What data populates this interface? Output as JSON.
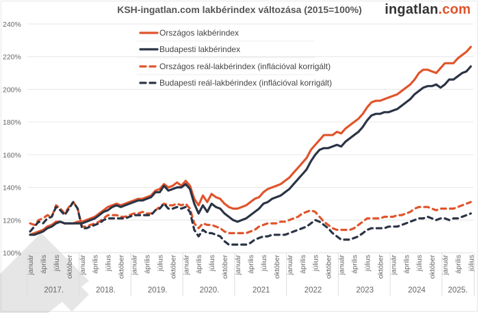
{
  "header": {
    "title": "KSH-ingatlan.com lakbérindex változása (2015=100%)",
    "brand_main": "ingatlan",
    "brand_suffix": ".com"
  },
  "colors": {
    "orszagos": "#e0542c",
    "budapest": "#2b3445",
    "grid": "#e6e6e6",
    "text": "#666666"
  },
  "chart_data": {
    "type": "line",
    "title": "KSH-ingatlan.com lakbérindex változása (2015=100%)",
    "xlabel": "",
    "ylabel": "",
    "ylim": [
      100,
      240
    ],
    "yticks": [
      "100%",
      "120%",
      "140%",
      "160%",
      "180%",
      "200%",
      "220%",
      "240%"
    ],
    "ytick_values": [
      100,
      120,
      140,
      160,
      180,
      200,
      220,
      240
    ],
    "grid": true,
    "legend_position": "top-left-inside",
    "month_labels": [
      "január",
      "április",
      "július",
      "október"
    ],
    "years": [
      "2017.",
      "2018.",
      "2019.",
      "2020.",
      "2021",
      "2022",
      "2023",
      "2024",
      "2025."
    ],
    "x_start": "2017-01",
    "x_end": "2025-07",
    "series": [
      {
        "name": "Országos lakbérindex",
        "style": "solid",
        "color": "#e0542c",
        "values": [
          111,
          112,
          113,
          114,
          116,
          117,
          119,
          119,
          118,
          118,
          118,
          119,
          119,
          120,
          121,
          122,
          124,
          126,
          128,
          129,
          130,
          129,
          130,
          131,
          132,
          133,
          133,
          134,
          135,
          138,
          139,
          142,
          140,
          141,
          143,
          141,
          144,
          141,
          133,
          129,
          135,
          131,
          136,
          134,
          133,
          130,
          128,
          127,
          127,
          128,
          129,
          131,
          133,
          134,
          137,
          139,
          140,
          141,
          142,
          144,
          146,
          149,
          152,
          155,
          158,
          163,
          166,
          169,
          172,
          172,
          172,
          174,
          173,
          176,
          178,
          180,
          182,
          185,
          189,
          192,
          193,
          193,
          194,
          195,
          196,
          197,
          199,
          201,
          203,
          206,
          210,
          212,
          212,
          211,
          210,
          213,
          216,
          216,
          216,
          219,
          221,
          223,
          226
        ]
      },
      {
        "name": "Budapesti lakbérindex",
        "style": "solid",
        "color": "#2b3445",
        "values": [
          111,
          111,
          112,
          113,
          115,
          116,
          118,
          119,
          118,
          118,
          118,
          118,
          118,
          119,
          120,
          121,
          123,
          125,
          126,
          128,
          129,
          128,
          129,
          130,
          131,
          132,
          132,
          133,
          134,
          137,
          137,
          141,
          138,
          139,
          140,
          140,
          142,
          139,
          130,
          124,
          129,
          125,
          130,
          128,
          127,
          124,
          122,
          120,
          119,
          120,
          121,
          123,
          125,
          127,
          130,
          131,
          133,
          134,
          135,
          137,
          139,
          142,
          145,
          148,
          151,
          156,
          160,
          163,
          164,
          164,
          165,
          166,
          165,
          168,
          170,
          172,
          174,
          177,
          181,
          184,
          185,
          185,
          186,
          186,
          187,
          188,
          190,
          192,
          194,
          197,
          199,
          201,
          202,
          202,
          203,
          201,
          203,
          206,
          206,
          208,
          210,
          211,
          214
        ]
      },
      {
        "name": "Országos reál-lakbérindex (inflációval korrigált)",
        "style": "dashed",
        "color": "#e0542c",
        "values": [
          118,
          117,
          120,
          121,
          123,
          122,
          129,
          127,
          124,
          128,
          131,
          127,
          116,
          116,
          117,
          118,
          119,
          121,
          123,
          123,
          123,
          122,
          122,
          123,
          124,
          124,
          125,
          124,
          124,
          126,
          128,
          130,
          129,
          129,
          130,
          129,
          130,
          127,
          118,
          115,
          118,
          117,
          117,
          116,
          115,
          113,
          112,
          112,
          112,
          112,
          112,
          113,
          114,
          116,
          117,
          118,
          118,
          118,
          119,
          119,
          120,
          121,
          122,
          124,
          125,
          126,
          125,
          122,
          119,
          117,
          115,
          114,
          114,
          114,
          114,
          115,
          117,
          119,
          121,
          121,
          121,
          121,
          122,
          122,
          122,
          123,
          123,
          124,
          125,
          127,
          128,
          128,
          128,
          127,
          126,
          127,
          127,
          127,
          127,
          128,
          129,
          130,
          131
        ]
      },
      {
        "name": "Budapesti reál-lakbérindex (inflációval korrigált)",
        "style": "dashed",
        "color": "#2b3445",
        "values": [
          113,
          116,
          119,
          118,
          121,
          122,
          128,
          126,
          123,
          127,
          131,
          127,
          115,
          115,
          116,
          117,
          118,
          120,
          121,
          121,
          121,
          121,
          121,
          122,
          123,
          123,
          123,
          123,
          123,
          126,
          127,
          130,
          127,
          127,
          128,
          127,
          128,
          125,
          114,
          110,
          114,
          112,
          112,
          111,
          110,
          107,
          105,
          105,
          105,
          105,
          105,
          106,
          108,
          109,
          110,
          110,
          111,
          111,
          111,
          111,
          112,
          113,
          114,
          115,
          116,
          118,
          120,
          119,
          117,
          115,
          112,
          110,
          108,
          108,
          108,
          109,
          110,
          112,
          114,
          115,
          115,
          115,
          115,
          116,
          116,
          116,
          117,
          118,
          119,
          120,
          121,
          121,
          122,
          121,
          120,
          121,
          121,
          120,
          121,
          121,
          122,
          123,
          124
        ]
      }
    ]
  }
}
